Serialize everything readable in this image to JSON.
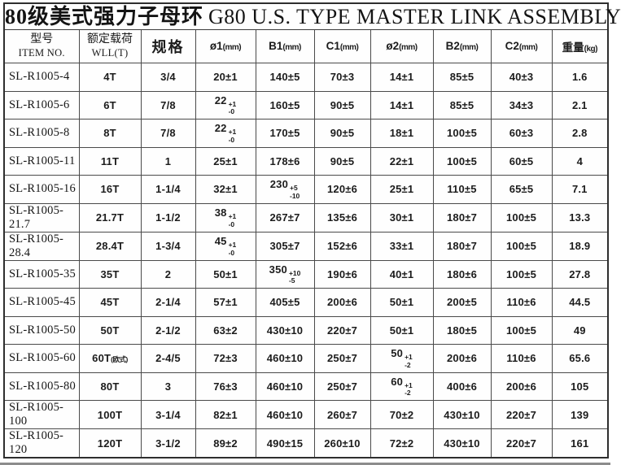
{
  "chart_data": {
    "type": "table",
    "title_cn": "80级美式强力子母环",
    "title_en": "G80 U.S. TYPE MASTER LINK ASSEMBLY",
    "columns": [
      {
        "name": "col-header-item-no",
        "top": "型号",
        "bottom": "ITEM NO."
      },
      {
        "name": "col-header-wll",
        "top": "额定载荷",
        "bottom": "WLL(T)"
      },
      {
        "name": "col-header-spec",
        "spec": "规格"
      },
      {
        "name": "col-header-d1",
        "main": "ø1",
        "unit": "(mm)"
      },
      {
        "name": "col-header-b1",
        "main": "B1",
        "unit": "(mm)"
      },
      {
        "name": "col-header-c1",
        "main": "C1",
        "unit": "(mm)"
      },
      {
        "name": "col-header-d2",
        "main": "ø2",
        "unit": "(mm)"
      },
      {
        "name": "col-header-b2",
        "main": "B2",
        "unit": "(mm)"
      },
      {
        "name": "col-header-c2",
        "main": "C2",
        "unit": "(mm)"
      },
      {
        "name": "col-header-weight",
        "main": "重量",
        "unit": "(kg)"
      }
    ],
    "rows": [
      [
        "SL-R1005-4",
        "4T",
        "3/4",
        "20±1",
        "140±5",
        "70±3",
        "14±1",
        "85±5",
        "40±3",
        "1.6"
      ],
      [
        "SL-R1005-6",
        "6T",
        "7/8",
        {
          "v": "22",
          "sup": "+1",
          "sub": "-0"
        },
        "160±5",
        "90±5",
        "14±1",
        "85±5",
        "34±3",
        "2.1"
      ],
      [
        "SL-R1005-8",
        "8T",
        "7/8",
        {
          "v": "22",
          "sup": "+1",
          "sub": "-0"
        },
        "170±5",
        "90±5",
        "18±1",
        "100±5",
        "60±3",
        "2.8"
      ],
      [
        "SL-R1005-11",
        "11T",
        "1",
        "25±1",
        "178±6",
        "90±5",
        "22±1",
        "100±5",
        "60±5",
        "4"
      ],
      [
        "SL-R1005-16",
        "16T",
        "1-1/4",
        "32±1",
        {
          "v": "230",
          "sup": "+5",
          "sub": "-10"
        },
        "120±6",
        "25±1",
        "110±5",
        "65±5",
        "7.1"
      ],
      [
        "SL-R1005-21.7",
        "21.7T",
        "1-1/2",
        {
          "v": "38",
          "sup": "+1",
          "sub": "-0"
        },
        "267±7",
        "135±6",
        "30±1",
        "180±7",
        "100±5",
        "13.3"
      ],
      [
        "SL-R1005-28.4",
        "28.4T",
        "1-3/4",
        {
          "v": "45",
          "sup": "+1",
          "sub": "-0"
        },
        "305±7",
        "152±6",
        "33±1",
        "180±7",
        "100±5",
        "18.9"
      ],
      [
        "SL-R1005-35",
        "35T",
        "2",
        "50±1",
        {
          "v": "350",
          "sup": "+10",
          "sub": "-5"
        },
        "190±6",
        "40±1",
        "180±6",
        "100±5",
        "27.8"
      ],
      [
        "SL-R1005-45",
        "45T",
        "2-1/4",
        "57±1",
        "405±5",
        "200±6",
        "50±1",
        "200±5",
        "110±6",
        "44.5"
      ],
      [
        "SL-R1005-50",
        "50T",
        "2-1/2",
        "63±2",
        "430±10",
        "220±7",
        "50±1",
        "180±5",
        "100±5",
        "49"
      ],
      [
        "SL-R1005-60",
        {
          "v": "60T",
          "small": "(欧式)"
        },
        "2-4/5",
        "72±3",
        "460±10",
        "250±7",
        {
          "v": "50",
          "sup": "+1",
          "sub": "-2"
        },
        "200±6",
        "110±6",
        "65.6"
      ],
      [
        "SL-R1005-80",
        "80T",
        "3",
        "76±3",
        "460±10",
        "250±7",
        {
          "v": "60",
          "sup": "+1",
          "sub": "-2"
        },
        "400±6",
        "200±6",
        "105"
      ],
      [
        "SL-R1005-100",
        "100T",
        "3-1/4",
        "82±1",
        "460±10",
        "260±7",
        "70±2",
        "430±10",
        "220±7",
        "139"
      ],
      [
        "SL-R1005-120",
        "120T",
        "3-1/2",
        "89±2",
        "490±15",
        "260±10",
        "72±2",
        "430±10",
        "220±7",
        "161"
      ]
    ]
  }
}
